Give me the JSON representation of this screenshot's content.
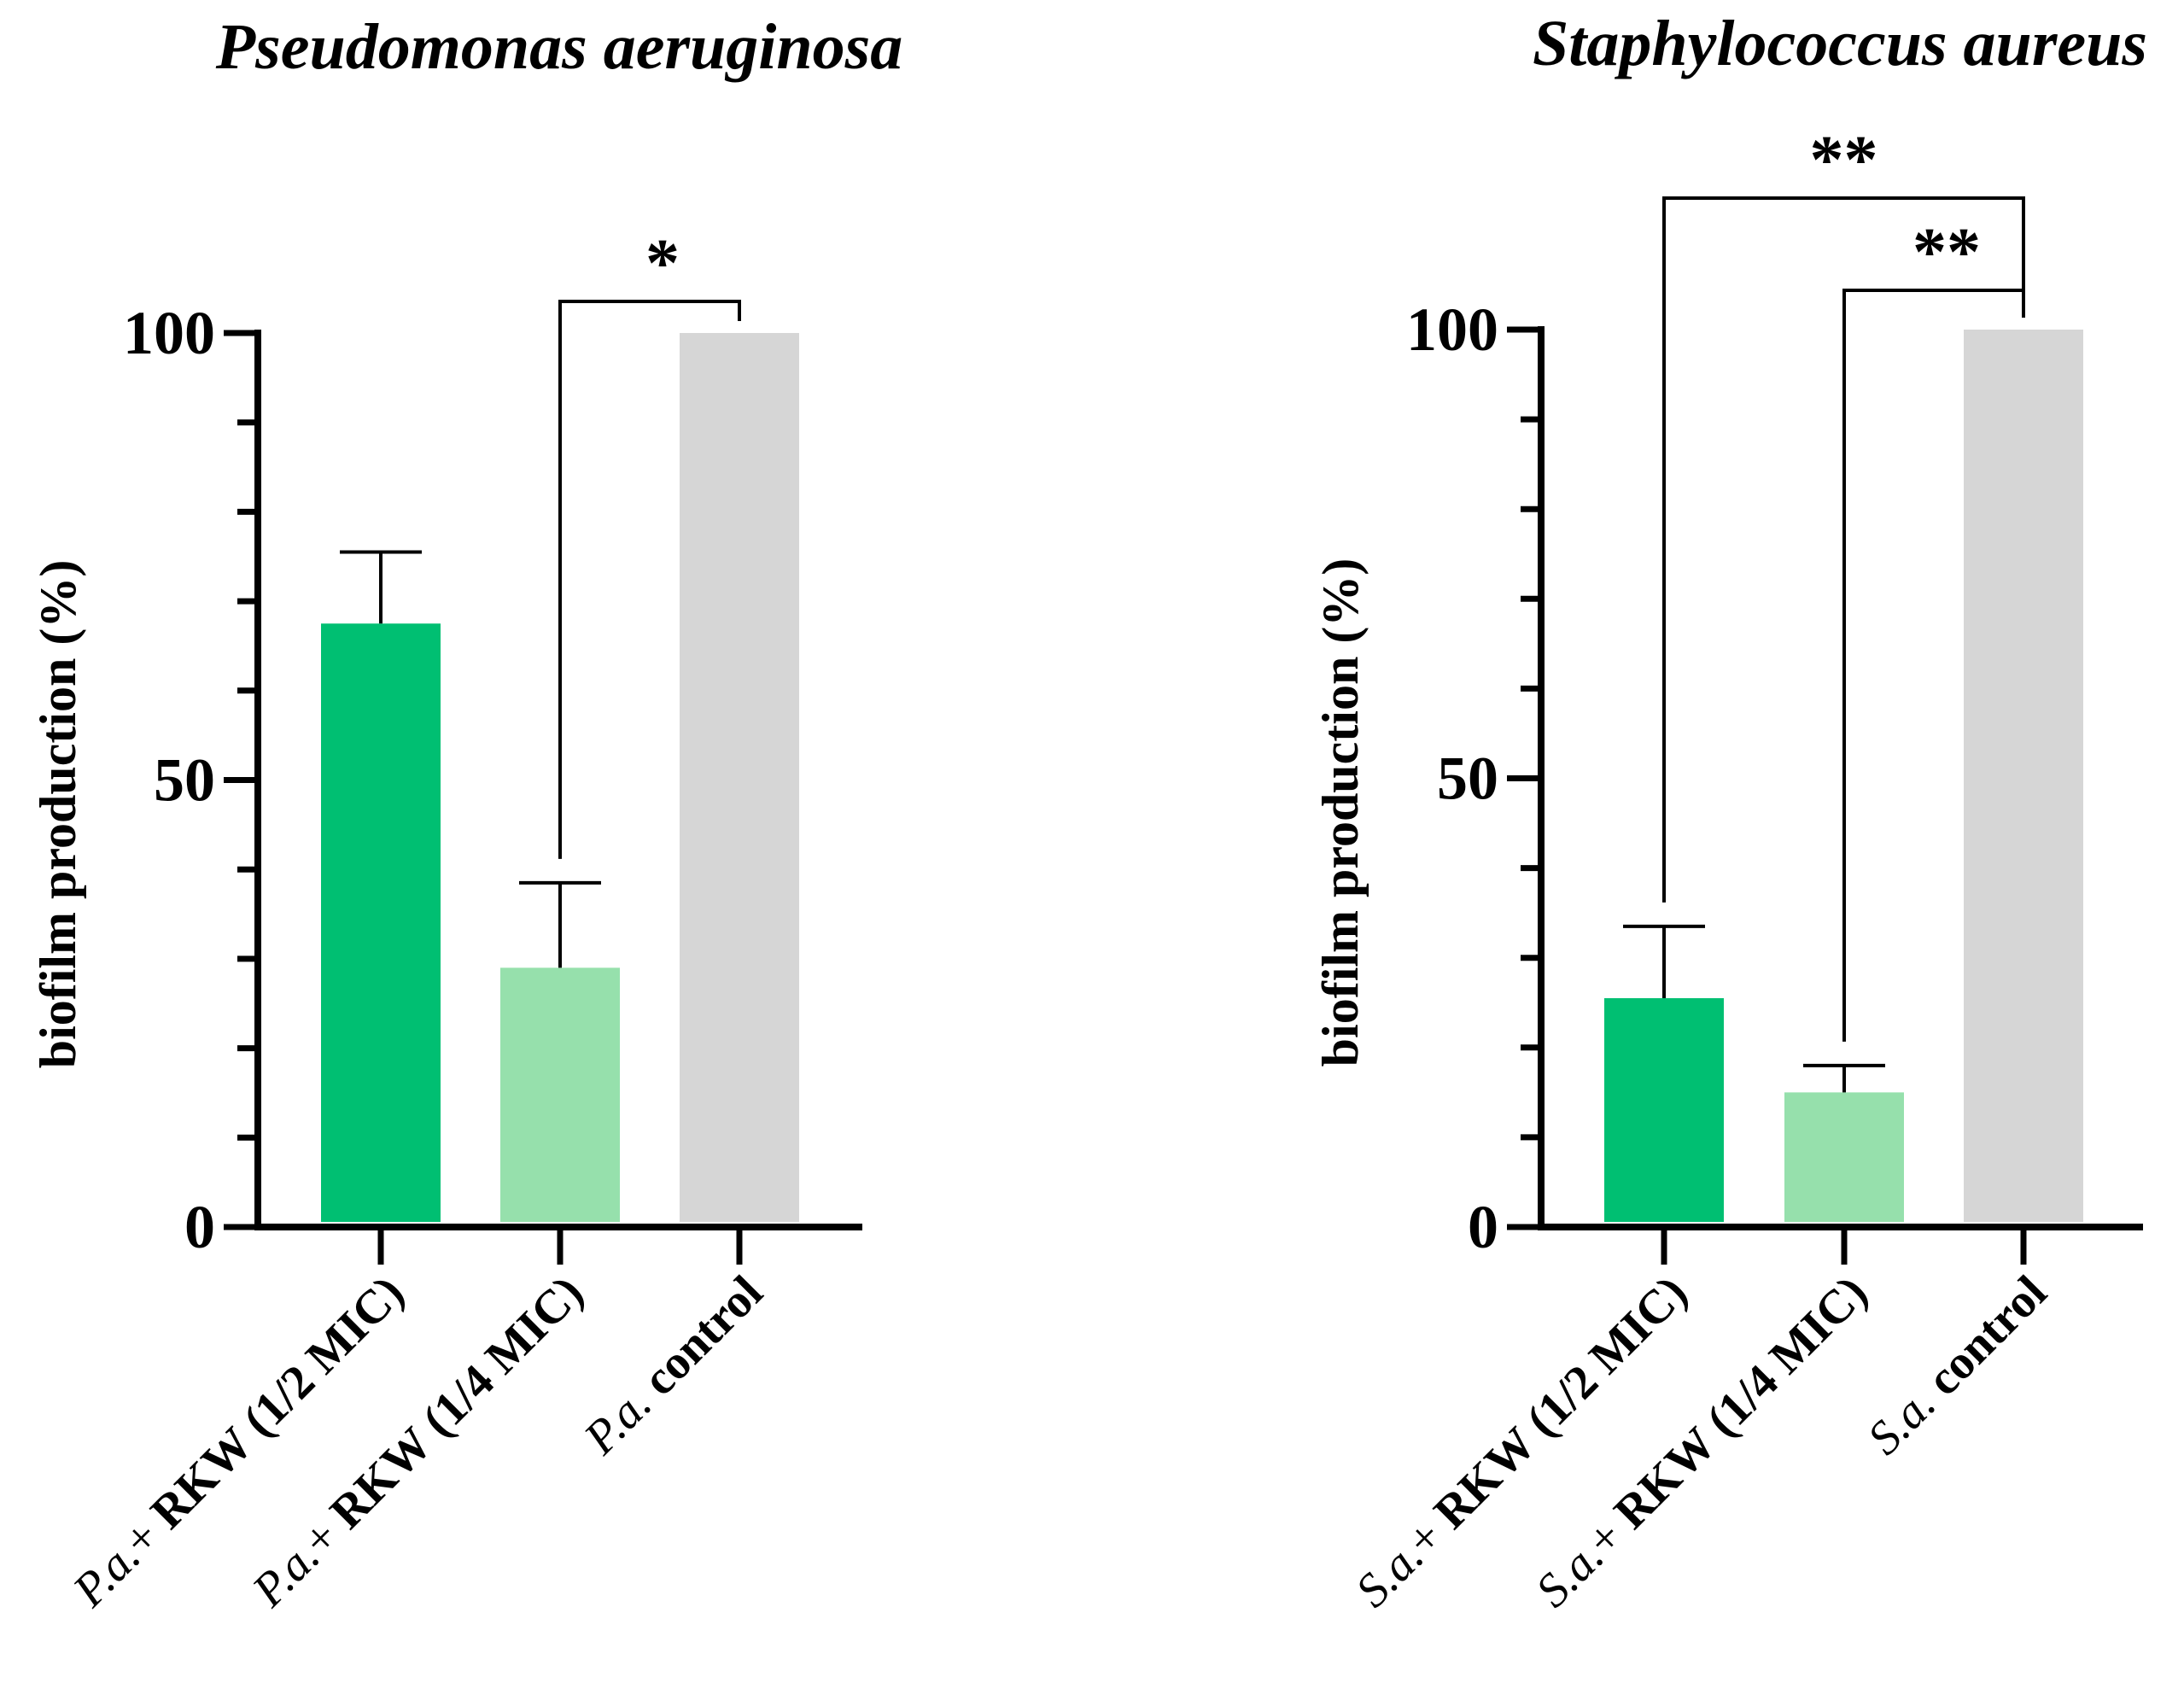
{
  "chart_data": [
    {
      "type": "bar",
      "title": "Pseudomonas aeruginosa",
      "ylabel": "biofilm production (%)",
      "xlabel": "",
      "ylim": [
        0,
        100
      ],
      "yticks": [
        "0",
        "50",
        "100"
      ],
      "categories": [
        {
          "prefix": "P.a.",
          "mid": "+ ",
          "rest": "RKW (1/2 MIC)"
        },
        {
          "prefix": "P.a.",
          "mid": "+ ",
          "rest": "RKW (1/4 MIC)"
        },
        {
          "prefix": "P.a.",
          "mid": "",
          "rest": " control"
        }
      ],
      "values": [
        67.5,
        29,
        100
      ],
      "errors": [
        8,
        9.5,
        0
      ],
      "colors": [
        "#00bf72",
        "#96e0ac",
        "#d6d6d6"
      ],
      "significance": [
        {
          "from": 1,
          "to": 2,
          "label": "*"
        }
      ]
    },
    {
      "type": "bar",
      "title": "Staphylococcus aureus",
      "ylabel": "biofilm production (%)",
      "xlabel": "",
      "ylim": [
        0,
        100
      ],
      "yticks": [
        "0",
        "50",
        "100"
      ],
      "categories": [
        {
          "prefix": "S.a.",
          "mid": "+ ",
          "rest": "RKW (1/2 MIC)"
        },
        {
          "prefix": "S.a.",
          "mid": "+ ",
          "rest": "RKW (1/4 MIC)"
        },
        {
          "prefix": "S.a.",
          "mid": "",
          "rest": " control"
        }
      ],
      "values": [
        25.5,
        15,
        100
      ],
      "errors": [
        8,
        3,
        0
      ],
      "colors": [
        "#00bf72",
        "#96e0ac",
        "#d6d6d6"
      ],
      "significance": [
        {
          "from": 0,
          "to": 2,
          "label": "**"
        },
        {
          "from": 1,
          "to": 2,
          "label": "**"
        }
      ]
    }
  ]
}
